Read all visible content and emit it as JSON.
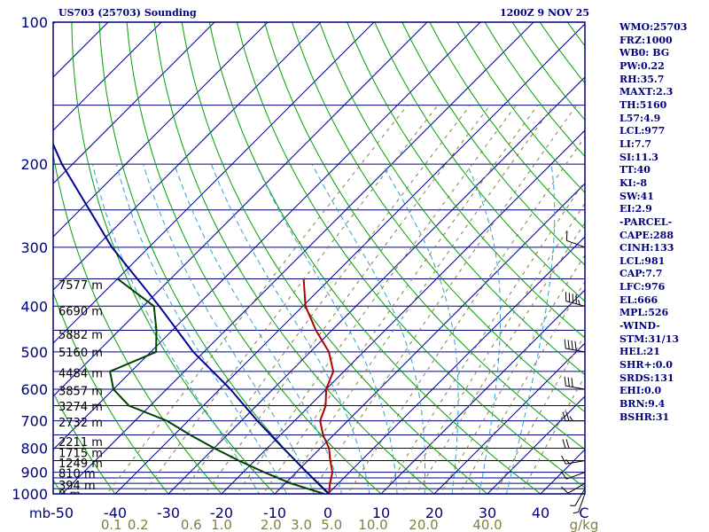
{
  "header": {
    "station": "US703 (25703) Sounding",
    "time": "1200Z  9 NOV 25"
  },
  "indices": [
    "WMO:25703",
    "FRZ:1000",
    "WB0: BG",
    "PW:0.22",
    "RH:35.7",
    "MAXT:2.3",
    "TH:5160",
    "L57:4.9",
    "LCL:977",
    "LI:7.7",
    "SI:11.3",
    "TT:40",
    "KI:-8",
    "SW:41",
    "EI:2.9",
    "-PARCEL-",
    "CAPE:288",
    "CINH:133",
    "LCL:981",
    "CAP:7.7",
    "LFC:976",
    "EL:666",
    "MPL:526",
    "-WIND-",
    "STM:31/13",
    "HEL:21",
    "SHR+:0.0",
    "SRDS:131",
    "EHI:0.0",
    "BRN:9.4",
    "BSHR:31"
  ],
  "colors": {
    "frame": "#00007a",
    "isobar": "#00007a",
    "isotherm": "#00007a",
    "dry_adiabat": "#00a000",
    "moist_adiabat": "#30a0d0",
    "mixing_ratio": "#808040",
    "temperature": "#b00000",
    "dewpoint": "#004000",
    "parcel": "#000090",
    "wind": "#000000"
  },
  "chart_data": {
    "type": "skew-t",
    "title": "US703 (25703) Sounding",
    "y_unit": "mb",
    "x_unit": "C",
    "mixing_ratio_unit": "g/kg",
    "pressure_range": [
      1000,
      100
    ],
    "temperature_range": [
      -50,
      50
    ],
    "pressure_labels": [
      100,
      200,
      300,
      400,
      500,
      600,
      700,
      800,
      900,
      1000
    ],
    "isobars": [
      100,
      150,
      200,
      250,
      300,
      350,
      400,
      450,
      500,
      550,
      600,
      650,
      700,
      750,
      800,
      850,
      900,
      925,
      950,
      975,
      1000
    ],
    "temperature_ticks": [
      {
        "v": -50,
        "label": "-50"
      },
      {
        "v": -40,
        "label": "-40"
      },
      {
        "v": -30,
        "label": "-30"
      },
      {
        "v": -20,
        "label": "-20"
      },
      {
        "v": -10,
        "label": "-10"
      },
      {
        "v": 0,
        "label": "0"
      },
      {
        "v": 10,
        "label": "10"
      },
      {
        "v": 20,
        "label": "20"
      },
      {
        "v": 30,
        "label": "30"
      },
      {
        "v": 40,
        "label": "40"
      }
    ],
    "mixing_ratio_labels": [
      {
        "v": -40.7,
        "label": "0.1"
      },
      {
        "v": -35.7,
        "label": "0.2"
      },
      {
        "v": -25.7,
        "label": "0.6"
      },
      {
        "v": -20.0,
        "label": "1.0"
      },
      {
        "v": -10.7,
        "label": "2.0"
      },
      {
        "v": -5.0,
        "label": "3.0"
      },
      {
        "v": 0.7,
        "label": "5.0"
      },
      {
        "v": 8.5,
        "label": "10.0"
      },
      {
        "v": 18.0,
        "label": "20.0"
      },
      {
        "v": 30.0,
        "label": "40.0"
      }
    ],
    "height_labels": [
      {
        "p": 1000,
        "label": "0 m"
      },
      {
        "p": 957,
        "label": "394 m"
      },
      {
        "p": 904,
        "label": "810 m"
      },
      {
        "p": 860,
        "label": "1249 m"
      },
      {
        "p": 817,
        "label": "1715 m"
      },
      {
        "p": 774,
        "label": "2211 m"
      },
      {
        "p": 704,
        "label": "2732 m"
      },
      {
        "p": 652,
        "label": "3274 m"
      },
      {
        "p": 604,
        "label": "3857 m"
      },
      {
        "p": 554,
        "label": "4484 m"
      },
      {
        "p": 500,
        "label": "5160 m"
      },
      {
        "p": 459,
        "label": "5882 m"
      },
      {
        "p": 409,
        "label": "6690 m"
      },
      {
        "p": 360,
        "label": "7577 m"
      }
    ],
    "series": [
      {
        "name": "temperature",
        "points": [
          {
            "p": 1000,
            "t": 0.2
          },
          {
            "p": 950,
            "t": -1.6
          },
          {
            "p": 900,
            "t": -3.2
          },
          {
            "p": 850,
            "t": -5.8
          },
          {
            "p": 800,
            "t": -8.4
          },
          {
            "p": 750,
            "t": -12.0
          },
          {
            "p": 700,
            "t": -15.2
          },
          {
            "p": 650,
            "t": -17.0
          },
          {
            "p": 600,
            "t": -20.0
          },
          {
            "p": 550,
            "t": -22.0
          },
          {
            "p": 500,
            "t": -26.5
          },
          {
            "p": 450,
            "t": -33.0
          },
          {
            "p": 400,
            "t": -39.5
          },
          {
            "p": 350,
            "t": -45.0
          }
        ]
      },
      {
        "name": "dewpoint",
        "points": [
          {
            "p": 1000,
            "t": -0.7
          },
          {
            "p": 950,
            "t": -9.0
          },
          {
            "p": 900,
            "t": -16.0
          },
          {
            "p": 850,
            "t": -23.0
          },
          {
            "p": 800,
            "t": -30.0
          },
          {
            "p": 750,
            "t": -37.0
          },
          {
            "p": 700,
            "t": -44.0
          },
          {
            "p": 650,
            "t": -54.0
          },
          {
            "p": 600,
            "t": -60.0
          },
          {
            "p": 550,
            "t": -64.0
          },
          {
            "p": 500,
            "t": -59.0
          },
          {
            "p": 450,
            "t": -63.0
          },
          {
            "p": 400,
            "t": -68.0
          },
          {
            "p": 350,
            "t": -80.0
          }
        ]
      },
      {
        "name": "parcel",
        "points": [
          {
            "p": 1000,
            "t": 0.2
          },
          {
            "p": 900,
            "t": -8.0
          },
          {
            "p": 800,
            "t": -17.0
          },
          {
            "p": 700,
            "t": -27.0
          },
          {
            "p": 600,
            "t": -38.0
          },
          {
            "p": 500,
            "t": -52.0
          },
          {
            "p": 400,
            "t": -67.0
          },
          {
            "p": 300,
            "t": -87.0
          },
          {
            "p": 200,
            "t": -112.0
          },
          {
            "p": 150,
            "t": -128.0
          },
          {
            "p": 130,
            "t": -135.0
          }
        ]
      }
    ],
    "wind_barbs": [
      {
        "p": 1000,
        "dir": 200,
        "kt": 5
      },
      {
        "p": 975,
        "dir": 210,
        "kt": 5
      },
      {
        "p": 950,
        "dir": 240,
        "kt": 10
      },
      {
        "p": 900,
        "dir": 250,
        "kt": 10
      },
      {
        "p": 850,
        "dir": 260,
        "kt": 15
      },
      {
        "p": 800,
        "dir": 270,
        "kt": 20
      },
      {
        "p": 700,
        "dir": 270,
        "kt": 25
      },
      {
        "p": 600,
        "dir": 280,
        "kt": 30
      },
      {
        "p": 500,
        "dir": 280,
        "kt": 40
      },
      {
        "p": 400,
        "dir": 285,
        "kt": 45
      },
      {
        "p": 300,
        "dir": 290,
        "kt": 10
      }
    ]
  }
}
